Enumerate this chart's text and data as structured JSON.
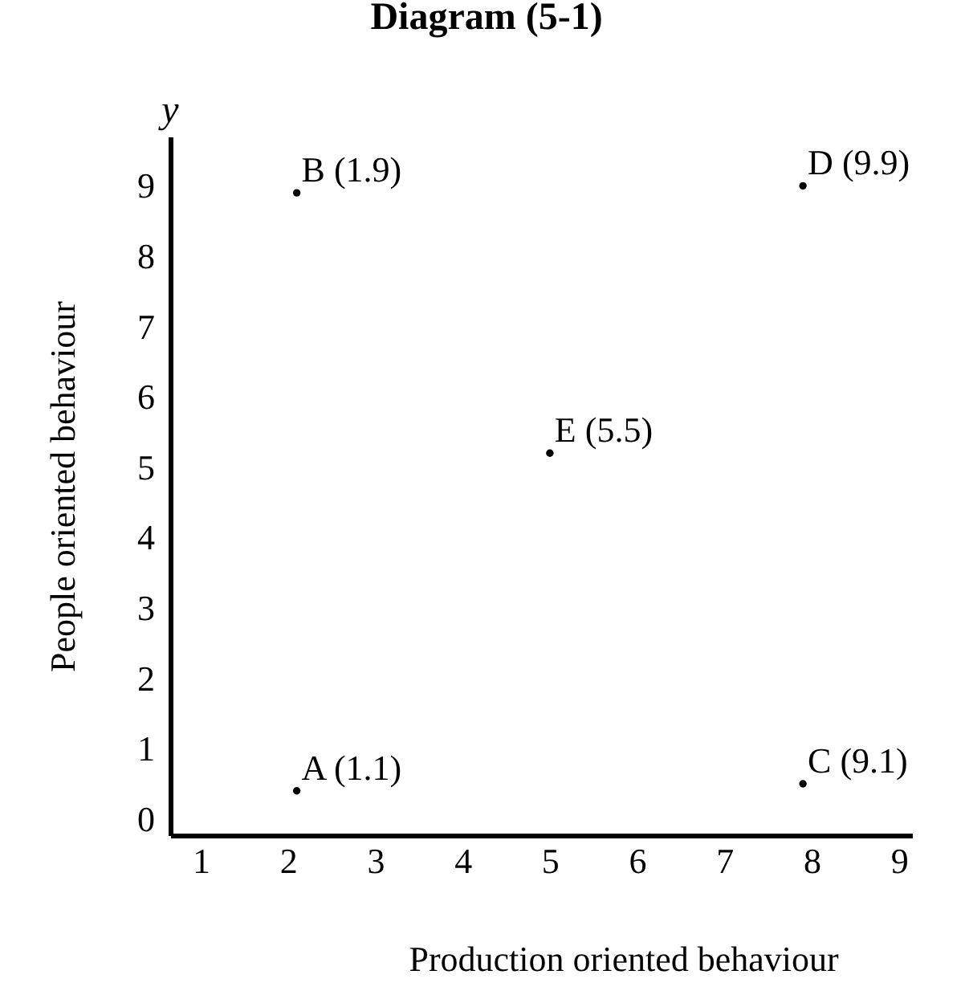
{
  "chart_data": {
    "type": "scatter",
    "title": "Diagram (5-1)",
    "xlabel": "Production oriented behaviour",
    "ylabel": "People oriented behaviour",
    "x": [
      2.1,
      2.1,
      7.9,
      7.9,
      5
    ],
    "series": [
      {
        "color": "#000000",
        "values": [
          0.4,
          8.9,
          0.5,
          9.0,
          5.2
        ]
      }
    ],
    "marker": "circle",
    "xlim": [
      0.65,
      9.15
    ],
    "xticks": [
      1,
      2,
      3,
      4,
      5,
      6,
      7,
      8,
      9
    ],
    "ylim": [
      -0.23,
      9.7
    ],
    "yticks": [
      0,
      1,
      2,
      3,
      4,
      5,
      6,
      7,
      8,
      9
    ],
    "annotations": [
      "y",
      {
        "text": "A (1.1)",
        "x": 2.1,
        "y": 0.4
      },
      {
        "text": "B (1.9)",
        "x": 2.1,
        "y": 8.9
      },
      {
        "text": "C (9.1)",
        "x": 7.9,
        "y": 0.5
      },
      {
        "text": "D (9.9)",
        "x": 7.9,
        "y": 9.0
      },
      {
        "text": "E (5.5)",
        "x": 5,
        "y": 5.2
      }
    ]
  }
}
